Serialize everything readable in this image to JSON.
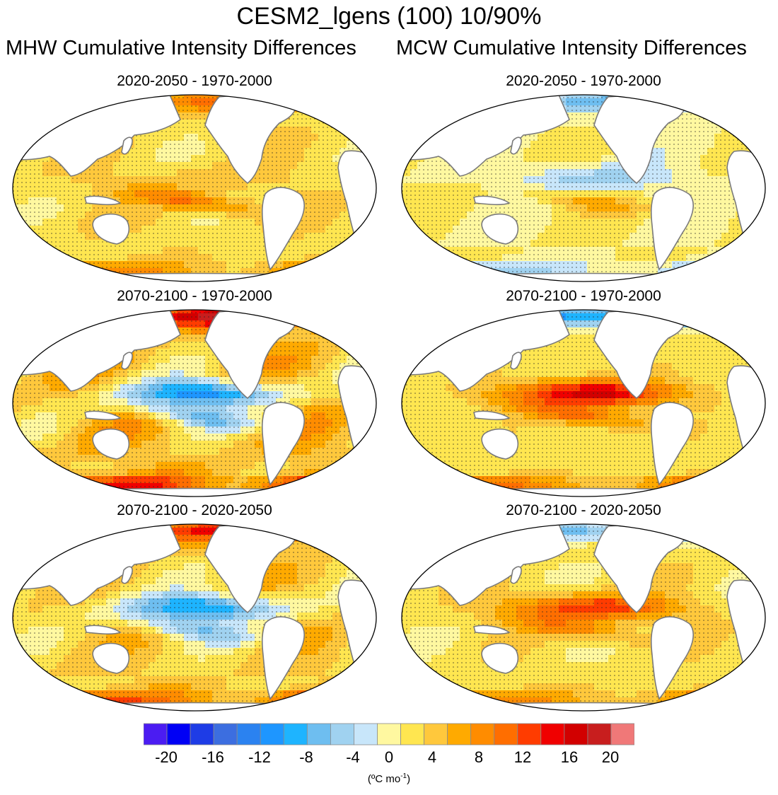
{
  "title": "CESM2_lgens (100) 10/90%",
  "columns": [
    {
      "title": "MHW Cumulative Intensity Differences"
    },
    {
      "title": "MCW Cumulative Intensity Differences"
    }
  ],
  "panels": [
    {
      "title": "2020-2050 - 1970-2000",
      "pattern": [
        0.3,
        0.12,
        0.1,
        0.35,
        0.1,
        0.35
      ]
    },
    {
      "title": "2020-2050 - 1970-2000",
      "pattern": [
        -0.3,
        0.05,
        -0.25,
        0.2,
        -0.1,
        -0.3
      ]
    },
    {
      "title": "2070-2100 - 1970-2000",
      "pattern": [
        0.55,
        0.2,
        -0.7,
        -0.35,
        0.2,
        0.7
      ]
    },
    {
      "title": "2070-2100 - 1970-2000",
      "pattern": [
        -0.55,
        0.1,
        0.7,
        0.35,
        0.05,
        0.55
      ]
    },
    {
      "title": "2070-2100 - 2020-2050",
      "pattern": [
        0.45,
        0.15,
        -0.6,
        -0.3,
        0.15,
        0.55
      ]
    },
    {
      "title": "2070-2100 - 2020-2050",
      "pattern": [
        -0.4,
        0.1,
        0.55,
        0.3,
        0.1,
        0.45
      ]
    }
  ],
  "colorbar": {
    "colors": [
      "#4b1cf2",
      "#0000f5",
      "#1e3ce6",
      "#3c6ee0",
      "#2b82f0",
      "#1e96ff",
      "#1eb4ff",
      "#6ebef0",
      "#a0d2f0",
      "#c8e6fa",
      "#fff8a0",
      "#ffe650",
      "#ffc83c",
      "#ffaa00",
      "#ff8c00",
      "#ff6e00",
      "#ff3c00",
      "#f00000",
      "#d20000",
      "#c81e1e",
      "#f07878"
    ],
    "labels": [
      "-20",
      "-16",
      "-12",
      "-8",
      "-4",
      "0",
      "4",
      "8",
      "12",
      "16",
      "20"
    ],
    "units": "(ºC mo",
    "units_exp": "-1",
    "units_close": ")"
  }
}
